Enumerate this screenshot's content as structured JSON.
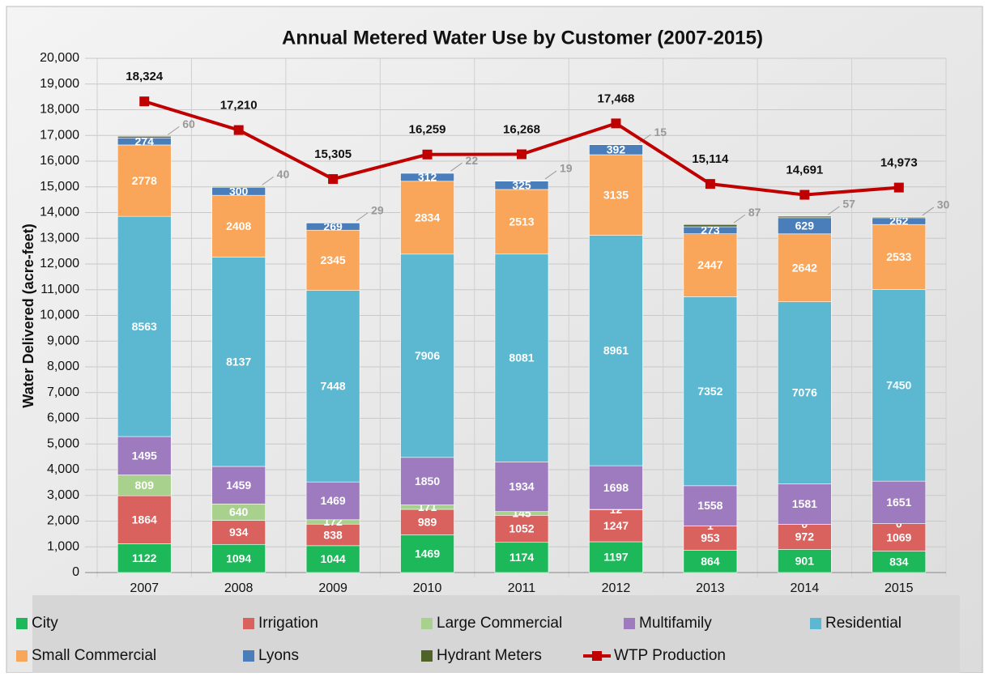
{
  "chart_data": {
    "type": "bar",
    "stacked": true,
    "title": "Annual Metered Water Use by Customer (2007-2015)",
    "y_label": "Water Delivered (acre-feet)",
    "categories": [
      "2007",
      "2008",
      "2009",
      "2010",
      "2011",
      "2012",
      "2013",
      "2014",
      "2015"
    ],
    "ylim": [
      0,
      20000
    ],
    "yticks": [
      0,
      {
        "value": 1000,
        "label": "1,000"
      },
      {
        "value": 2000,
        "label": "2,000"
      },
      {
        "value": 3000,
        "label": "3,000"
      },
      {
        "value": 4000,
        "label": "4,000"
      },
      {
        "value": 5000,
        "label": "5,000"
      },
      {
        "value": 6000,
        "label": "6,000"
      },
      {
        "value": 7000,
        "label": "7,000"
      },
      {
        "value": 8000,
        "label": "8,000"
      },
      {
        "value": 9000,
        "label": "9,000"
      },
      {
        "value": 10000,
        "label": "10,000"
      },
      {
        "value": 11000,
        "label": "11,000"
      },
      {
        "value": 12000,
        "label": "12,000"
      },
      {
        "value": 13000,
        "label": "13,000"
      },
      {
        "value": 14000,
        "label": "14,000"
      },
      {
        "value": 15000,
        "label": "15,000"
      },
      {
        "value": 16000,
        "label": "16,000"
      },
      {
        "value": 17000,
        "label": "17,000"
      },
      {
        "value": 18000,
        "label": "18,000"
      },
      {
        "value": 19000,
        "label": "19,000"
      },
      {
        "value": 20000,
        "label": "20,000"
      }
    ],
    "grid": true,
    "legend": "bottom",
    "series": [
      {
        "name": "City",
        "color": "#1db85a",
        "values": [
          1122,
          1094,
          1044,
          1469,
          1174,
          1197,
          864,
          901,
          834
        ]
      },
      {
        "name": "Irrigation",
        "color": "#d9625e",
        "values": [
          1864,
          934,
          838,
          989,
          1052,
          1247,
          953,
          972,
          1069
        ]
      },
      {
        "name": "Large Commercial",
        "color": "#a9d18e",
        "values": [
          809,
          640,
          172,
          171,
          145,
          12,
          1,
          0,
          0
        ]
      },
      {
        "name": "Multifamily",
        "color": "#9e7bbf",
        "values": [
          1495,
          1459,
          1469,
          1850,
          1934,
          1698,
          1558,
          1581,
          1651
        ]
      },
      {
        "name": "Residential",
        "color": "#5bb8d0",
        "values": [
          8563,
          8137,
          7448,
          7906,
          8081,
          8961,
          7352,
          7076,
          7450
        ]
      },
      {
        "name": "Small Commercial",
        "color": "#f9a65a",
        "values": [
          2778,
          2408,
          2345,
          2834,
          2513,
          3135,
          2447,
          2642,
          2533
        ]
      },
      {
        "name": "Lyons",
        "color": "#4a7ebb",
        "values": [
          274,
          300,
          269,
          312,
          325,
          392,
          273,
          629,
          262
        ]
      },
      {
        "name": "Hydrant Meters",
        "color": "#4f6228",
        "values": [
          60,
          40,
          29,
          22,
          19,
          15,
          87,
          57,
          30
        ]
      },
      {
        "name": "WTP Production",
        "type": "line",
        "color": "#c00000",
        "values": [
          18324,
          17210,
          15305,
          16259,
          16268,
          17468,
          15114,
          14691,
          14973
        ],
        "value_labels": [
          "18,324",
          "17,210",
          "15,305",
          "16,259",
          "16,268",
          "17,468",
          "15,114",
          "14,691",
          "14,973"
        ]
      }
    ]
  }
}
